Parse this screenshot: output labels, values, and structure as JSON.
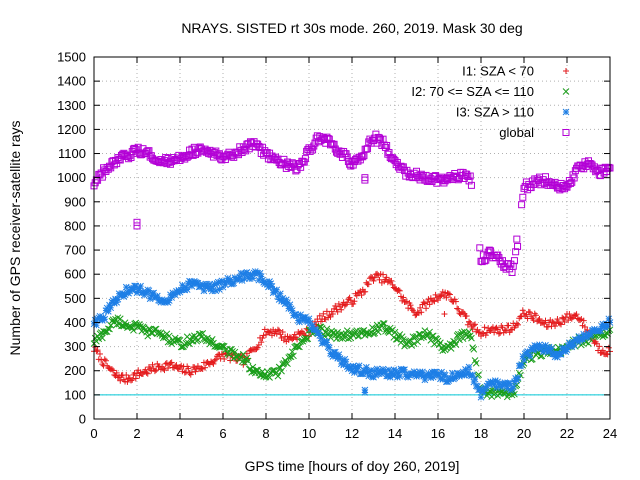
{
  "chart_data": {
    "type": "scatter",
    "title": "NRAYS. SISTED rt 30s mode. 260, 2019. Mask 30 deg",
    "xlabel": "GPS time [hours of doy 260, 2019]",
    "ylabel": "Number of GPS receiver-satellite rays",
    "xlim": [
      0,
      24
    ],
    "ylim": [
      0,
      1500
    ],
    "xticks": [
      0,
      2,
      4,
      6,
      8,
      10,
      12,
      14,
      16,
      18,
      20,
      22,
      24
    ],
    "yticks": [
      0,
      100,
      200,
      300,
      400,
      500,
      600,
      700,
      800,
      900,
      1000,
      1100,
      1200,
      1300,
      1400,
      1500
    ],
    "grid": true,
    "legend_position": "top-right",
    "reference_line": {
      "y": 100,
      "color": "#00c8d6"
    },
    "series": [
      {
        "name": "I1: SZA < 70",
        "marker": "+",
        "color": "#e41a1c",
        "x": [
          0,
          0.5,
          1,
          1.5,
          2,
          2.5,
          3,
          3.5,
          4,
          4.5,
          5,
          5.5,
          6,
          6.5,
          7,
          7.5,
          8,
          8.5,
          9,
          9.5,
          10,
          10.5,
          11,
          11.5,
          12,
          12.5,
          13,
          13.5,
          14,
          14.5,
          15,
          15.5,
          16,
          16.5,
          17,
          17.5,
          18,
          18.5,
          19,
          19.5,
          20,
          20.5,
          21,
          21.5,
          22,
          22.5,
          23,
          23.5,
          24
        ],
        "values": [
          290,
          230,
          180,
          165,
          185,
          200,
          215,
          225,
          205,
          200,
          215,
          240,
          265,
          255,
          240,
          300,
          360,
          365,
          330,
          350,
          360,
          410,
          440,
          470,
          490,
          530,
          590,
          580,
          550,
          480,
          440,
          480,
          510,
          520,
          450,
          390,
          360,
          370,
          370,
          380,
          440,
          420,
          390,
          400,
          420,
          430,
          360,
          290,
          280
        ]
      },
      {
        "name": "I2: 70 <= SZA <= 110",
        "marker": "x",
        "color": "#1a9e1a",
        "x": [
          0,
          0.5,
          1,
          1.5,
          2,
          2.5,
          3,
          3.5,
          4,
          4.5,
          5,
          5.5,
          6,
          6.5,
          7,
          7.5,
          8,
          8.5,
          9,
          9.5,
          10,
          10.5,
          11,
          11.5,
          12,
          12.5,
          13,
          13.5,
          14,
          14.5,
          15,
          15.5,
          16,
          16.5,
          17,
          17.5,
          18,
          18.5,
          19,
          19.5,
          20,
          20.5,
          21,
          21.5,
          22,
          22.5,
          23,
          23.5,
          24
        ],
        "values": [
          320,
          360,
          410,
          390,
          380,
          360,
          360,
          330,
          310,
          330,
          340,
          320,
          290,
          270,
          250,
          190,
          180,
          190,
          240,
          300,
          350,
          370,
          350,
          350,
          350,
          350,
          370,
          380,
          350,
          310,
          330,
          360,
          310,
          290,
          340,
          350,
          120,
          110,
          110,
          105,
          240,
          270,
          280,
          280,
          300,
          320,
          330,
          350,
          370
        ]
      },
      {
        "name": "I3: SZA > 110",
        "marker": "*",
        "color": "#1e7fe6",
        "x": [
          0,
          0.5,
          1,
          1.5,
          2,
          2.5,
          3,
          3.5,
          4,
          4.5,
          5,
          5.5,
          6,
          6.5,
          7,
          7.5,
          8,
          8.5,
          9,
          9.5,
          10,
          10.5,
          11,
          11.5,
          12,
          12.5,
          13,
          13.5,
          14,
          14.5,
          15,
          15.5,
          16,
          16.5,
          17,
          17.5,
          18,
          18.5,
          19,
          19.5,
          20,
          20.5,
          21,
          21.5,
          22,
          22.5,
          23,
          23.5,
          24
        ],
        "values": [
          400,
          430,
          490,
          530,
          540,
          520,
          500,
          500,
          540,
          560,
          550,
          540,
          560,
          580,
          590,
          600,
          570,
          520,
          480,
          420,
          400,
          340,
          280,
          240,
          210,
          200,
          190,
          190,
          190,
          190,
          180,
          180,
          180,
          170,
          190,
          200,
          100,
          150,
          140,
          130,
          260,
          290,
          290,
          270,
          300,
          330,
          350,
          380,
          400
        ]
      },
      {
        "name": "global",
        "marker": "square",
        "color": "#b300d6",
        "x": [
          0,
          0.5,
          1,
          1.5,
          2,
          2.5,
          3,
          3.5,
          4,
          4.5,
          5,
          5.5,
          6,
          6.5,
          7,
          7.5,
          8,
          8.5,
          9,
          9.5,
          10,
          10.5,
          11,
          11.5,
          12,
          12.5,
          13,
          13.5,
          14,
          14.5,
          15,
          15.5,
          16,
          16.5,
          17,
          17.5,
          18,
          18.5,
          19,
          19.5,
          20,
          20.5,
          21,
          21.5,
          22,
          22.5,
          23,
          23.5,
          24
        ],
        "values": [
          970,
          1030,
          1060,
          1090,
          1110,
          1100,
          1080,
          1060,
          1080,
          1110,
          1110,
          1100,
          1090,
          1100,
          1120,
          1140,
          1100,
          1080,
          1050,
          1040,
          1110,
          1170,
          1140,
          1100,
          1060,
          1090,
          1170,
          1140,
          1060,
          1020,
          1010,
          1000,
          990,
          1000,
          1010,
          1000,
          660,
          690,
          640,
          620,
          960,
          980,
          990,
          970,
          960,
          1040,
          1060,
          1020,
          1040
        ]
      }
    ],
    "outliers": [
      {
        "series": "global",
        "x": 2.0,
        "y": 800
      },
      {
        "series": "global",
        "x": 2.0,
        "y": 815
      },
      {
        "series": "global",
        "x": 19.7,
        "y": 715
      },
      {
        "series": "global",
        "x": 12.6,
        "y": 990
      },
      {
        "series": "global",
        "x": 12.6,
        "y": 1000
      },
      {
        "series": "I3: SZA > 110",
        "x": 12.6,
        "y": 110
      },
      {
        "series": "I3: SZA > 110",
        "x": 12.6,
        "y": 120
      },
      {
        "series": "I1: SZA < 70",
        "x": 16.3,
        "y": 435
      }
    ]
  }
}
